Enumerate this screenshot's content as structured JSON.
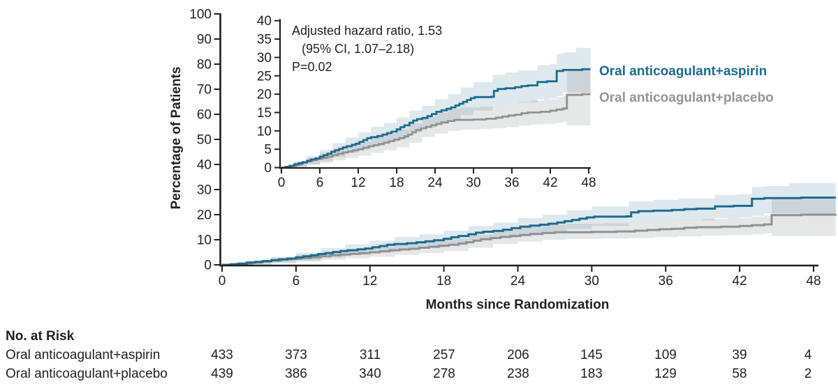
{
  "chart_data": {
    "type": "line",
    "subtype": "kaplan-meier-cumulative-incidence-steps-with-95ci-bands",
    "title": "",
    "xlabel": "Months since Randomization",
    "ylabel": "Percentage of Patients",
    "annotation": [
      "Adjusted hazard ratio, 1.53",
      "(95% CI, 1.07–2.18)",
      "P=0.02"
    ],
    "x_ticks": [
      0,
      6,
      12,
      18,
      24,
      30,
      36,
      42,
      48
    ],
    "main_axis": {
      "xlim": [
        0,
        48
      ],
      "ylim": [
        0,
        100
      ],
      "y_ticks": [
        0,
        10,
        20,
        30,
        40,
        50,
        60,
        70,
        80,
        90,
        100
      ],
      "grid": false
    },
    "inset_axis": {
      "xlim": [
        0,
        48
      ],
      "ylim": [
        0,
        40
      ],
      "y_ticks": [
        0,
        5,
        10,
        15,
        20,
        25,
        30,
        35,
        40
      ],
      "grid": false
    },
    "colors": {
      "aspirin_line": "#1d6b8e",
      "placebo_line": "#8f9193",
      "placebo_legend_text": "#939598",
      "aspirin_band": "rgba(31,107,142,0.15)",
      "placebo_band": "rgba(118,120,122,0.18)",
      "axis": "#231f20"
    },
    "series": [
      {
        "name": "Oral anticoagulant+aspirin",
        "color": "#1d6b8e",
        "points": [
          [
            0,
            0
          ],
          [
            0.7,
            0.2
          ],
          [
            1.3,
            0.5
          ],
          [
            2,
            0.9
          ],
          [
            2.7,
            1.2
          ],
          [
            3.3,
            1.5
          ],
          [
            4,
            1.9
          ],
          [
            4.6,
            2.2
          ],
          [
            5.3,
            2.5
          ],
          [
            6,
            3.0
          ],
          [
            6.6,
            3.4
          ],
          [
            7.2,
            3.8
          ],
          [
            7.8,
            4.3
          ],
          [
            8.4,
            4.7
          ],
          [
            9,
            5.1
          ],
          [
            9.6,
            5.5
          ],
          [
            10.2,
            5.8
          ],
          [
            11,
            6.2
          ],
          [
            11.6,
            6.5
          ],
          [
            12.2,
            7.0
          ],
          [
            12.8,
            7.5
          ],
          [
            13.4,
            8.0
          ],
          [
            14,
            8.3
          ],
          [
            15,
            8.6
          ],
          [
            15.8,
            9.0
          ],
          [
            16.5,
            9.4
          ],
          [
            17.2,
            9.8
          ],
          [
            18,
            10.4
          ],
          [
            18.6,
            11.0
          ],
          [
            19.2,
            11.5
          ],
          [
            20,
            12.2
          ],
          [
            20.6,
            12.8
          ],
          [
            21.2,
            13.2
          ],
          [
            22,
            13.5
          ],
          [
            22.8,
            14.0
          ],
          [
            23.5,
            14.6
          ],
          [
            24.2,
            15.2
          ],
          [
            25,
            15.6
          ],
          [
            25.8,
            16.0
          ],
          [
            26.5,
            16.4
          ],
          [
            27.2,
            16.9
          ],
          [
            27.8,
            17.4
          ],
          [
            28.4,
            17.9
          ],
          [
            29,
            18.4
          ],
          [
            29.6,
            18.9
          ],
          [
            30.2,
            19.2
          ],
          [
            32.8,
            19.3
          ],
          [
            33.2,
            20.9
          ],
          [
            33.8,
            21.4
          ],
          [
            35,
            21.6
          ],
          [
            36.5,
            21.9
          ],
          [
            37.5,
            22.2
          ],
          [
            38.5,
            22.4
          ],
          [
            40,
            23.3
          ],
          [
            41.5,
            23.5
          ],
          [
            43,
            26.3
          ],
          [
            44,
            26.6
          ],
          [
            47,
            26.8
          ],
          [
            49.8,
            26.8
          ]
        ],
        "ci_lower": [
          [
            0,
            0
          ],
          [
            2,
            0.2
          ],
          [
            4,
            0.9
          ],
          [
            6,
            1.7
          ],
          [
            8,
            2.9
          ],
          [
            10,
            4.0
          ],
          [
            12,
            5.0
          ],
          [
            14,
            6.1
          ],
          [
            16,
            7.0
          ],
          [
            18,
            8.0
          ],
          [
            20,
            9.7
          ],
          [
            22,
            10.9
          ],
          [
            24,
            12.1
          ],
          [
            26,
            13.0
          ],
          [
            28,
            14.3
          ],
          [
            30,
            15.5
          ],
          [
            33,
            16.9
          ],
          [
            35,
            17.3
          ],
          [
            37,
            17.7
          ],
          [
            40,
            18.6
          ],
          [
            42,
            18.8
          ],
          [
            43,
            19.5
          ],
          [
            44,
            20.5
          ],
          [
            49.8,
            20.5
          ]
        ],
        "ci_upper": [
          [
            0,
            0
          ],
          [
            1,
            0.8
          ],
          [
            2,
            1.7
          ],
          [
            4,
            3.2
          ],
          [
            6,
            4.8
          ],
          [
            8,
            6.7
          ],
          [
            10,
            8.2
          ],
          [
            12,
            9.6
          ],
          [
            14,
            11.1
          ],
          [
            16,
            12.2
          ],
          [
            18,
            13.6
          ],
          [
            20,
            15.5
          ],
          [
            22,
            16.8
          ],
          [
            24,
            18.6
          ],
          [
            26,
            20.0
          ],
          [
            28,
            21.8
          ],
          [
            30,
            23.3
          ],
          [
            33,
            25.3
          ],
          [
            35,
            25.9
          ],
          [
            37,
            26.5
          ],
          [
            40,
            27.9
          ],
          [
            42,
            28.2
          ],
          [
            43,
            31.0
          ],
          [
            44,
            31.4
          ],
          [
            46,
            32.6
          ],
          [
            49.8,
            32.6
          ]
        ]
      },
      {
        "name": "Oral anticoagulant+placebo",
        "color": "#8f9193",
        "points": [
          [
            0,
            0
          ],
          [
            0.8,
            0.2
          ],
          [
            1.6,
            0.5
          ],
          [
            2.4,
            0.9
          ],
          [
            3.2,
            1.3
          ],
          [
            4,
            1.7
          ],
          [
            4.8,
            2.1
          ],
          [
            5.6,
            2.4
          ],
          [
            6.4,
            2.7
          ],
          [
            7.2,
            3.0
          ],
          [
            8,
            3.4
          ],
          [
            8.8,
            3.8
          ],
          [
            9.6,
            4.1
          ],
          [
            10.4,
            4.4
          ],
          [
            11.2,
            4.7
          ],
          [
            12,
            5.0
          ],
          [
            12.8,
            5.4
          ],
          [
            13.6,
            5.8
          ],
          [
            14.4,
            6.1
          ],
          [
            15.2,
            6.4
          ],
          [
            16,
            6.8
          ],
          [
            16.8,
            7.2
          ],
          [
            17.6,
            7.6
          ],
          [
            18.4,
            8.0
          ],
          [
            19.2,
            8.5
          ],
          [
            19.8,
            9.0
          ],
          [
            20.4,
            9.6
          ],
          [
            21,
            10.2
          ],
          [
            21.8,
            10.7
          ],
          [
            22.6,
            11.1
          ],
          [
            23.4,
            11.5
          ],
          [
            24.2,
            11.9
          ],
          [
            25,
            12.3
          ],
          [
            26,
            12.7
          ],
          [
            27,
            13.0
          ],
          [
            30,
            13.1
          ],
          [
            32,
            13.3
          ],
          [
            33.5,
            13.6
          ],
          [
            34.5,
            13.9
          ],
          [
            35.5,
            14.2
          ],
          [
            36.5,
            14.4
          ],
          [
            37.5,
            14.8
          ],
          [
            38.5,
            15.0
          ],
          [
            40.5,
            15.2
          ],
          [
            42,
            15.5
          ],
          [
            43,
            15.8
          ],
          [
            44,
            16.1
          ],
          [
            44.6,
            19.8
          ],
          [
            47,
            20.0
          ],
          [
            49.8,
            20.1
          ]
        ],
        "ci_lower": [
          [
            0,
            0
          ],
          [
            2,
            0.1
          ],
          [
            4,
            0.7
          ],
          [
            6,
            1.3
          ],
          [
            8,
            2.0
          ],
          [
            10,
            2.6
          ],
          [
            12,
            3.2
          ],
          [
            14,
            4.0
          ],
          [
            16,
            4.7
          ],
          [
            18,
            5.5
          ],
          [
            20,
            6.8
          ],
          [
            22,
            8.3
          ],
          [
            24,
            9.2
          ],
          [
            26,
            10.0
          ],
          [
            28,
            10.3
          ],
          [
            31,
            10.5
          ],
          [
            33,
            10.7
          ],
          [
            35,
            11.0
          ],
          [
            37,
            11.4
          ],
          [
            39,
            11.7
          ],
          [
            41,
            11.9
          ],
          [
            43,
            12.2
          ],
          [
            44,
            12.5
          ],
          [
            44.6,
            11.5
          ],
          [
            49.8,
            11.5
          ]
        ],
        "ci_upper": [
          [
            0,
            0
          ],
          [
            1,
            0.7
          ],
          [
            2,
            1.4
          ],
          [
            4,
            2.7
          ],
          [
            6,
            4.0
          ],
          [
            8,
            5.1
          ],
          [
            10,
            6.2
          ],
          [
            12,
            7.1
          ],
          [
            14,
            8.3
          ],
          [
            16,
            9.2
          ],
          [
            18,
            10.4
          ],
          [
            20,
            12.0
          ],
          [
            22,
            13.9
          ],
          [
            24,
            15.0
          ],
          [
            26,
            16.0
          ],
          [
            28,
            16.4
          ],
          [
            31,
            16.6
          ],
          [
            33,
            16.9
          ],
          [
            35,
            17.3
          ],
          [
            37,
            17.9
          ],
          [
            39,
            18.3
          ],
          [
            41,
            18.6
          ],
          [
            43,
            19.2
          ],
          [
            44,
            19.6
          ],
          [
            44.6,
            26.5
          ],
          [
            49.8,
            26.5
          ]
        ]
      }
    ],
    "risk_table": {
      "title": "No. at Risk",
      "months": [
        0,
        6,
        12,
        18,
        24,
        30,
        36,
        42,
        48
      ],
      "rows": [
        {
          "label": "Oral anticoagulant+aspirin",
          "values": [
            433,
            373,
            311,
            257,
            206,
            145,
            109,
            39,
            4
          ]
        },
        {
          "label": "Oral anticoagulant+placebo",
          "values": [
            439,
            386,
            340,
            278,
            238,
            183,
            129,
            58,
            2
          ]
        }
      ]
    }
  }
}
